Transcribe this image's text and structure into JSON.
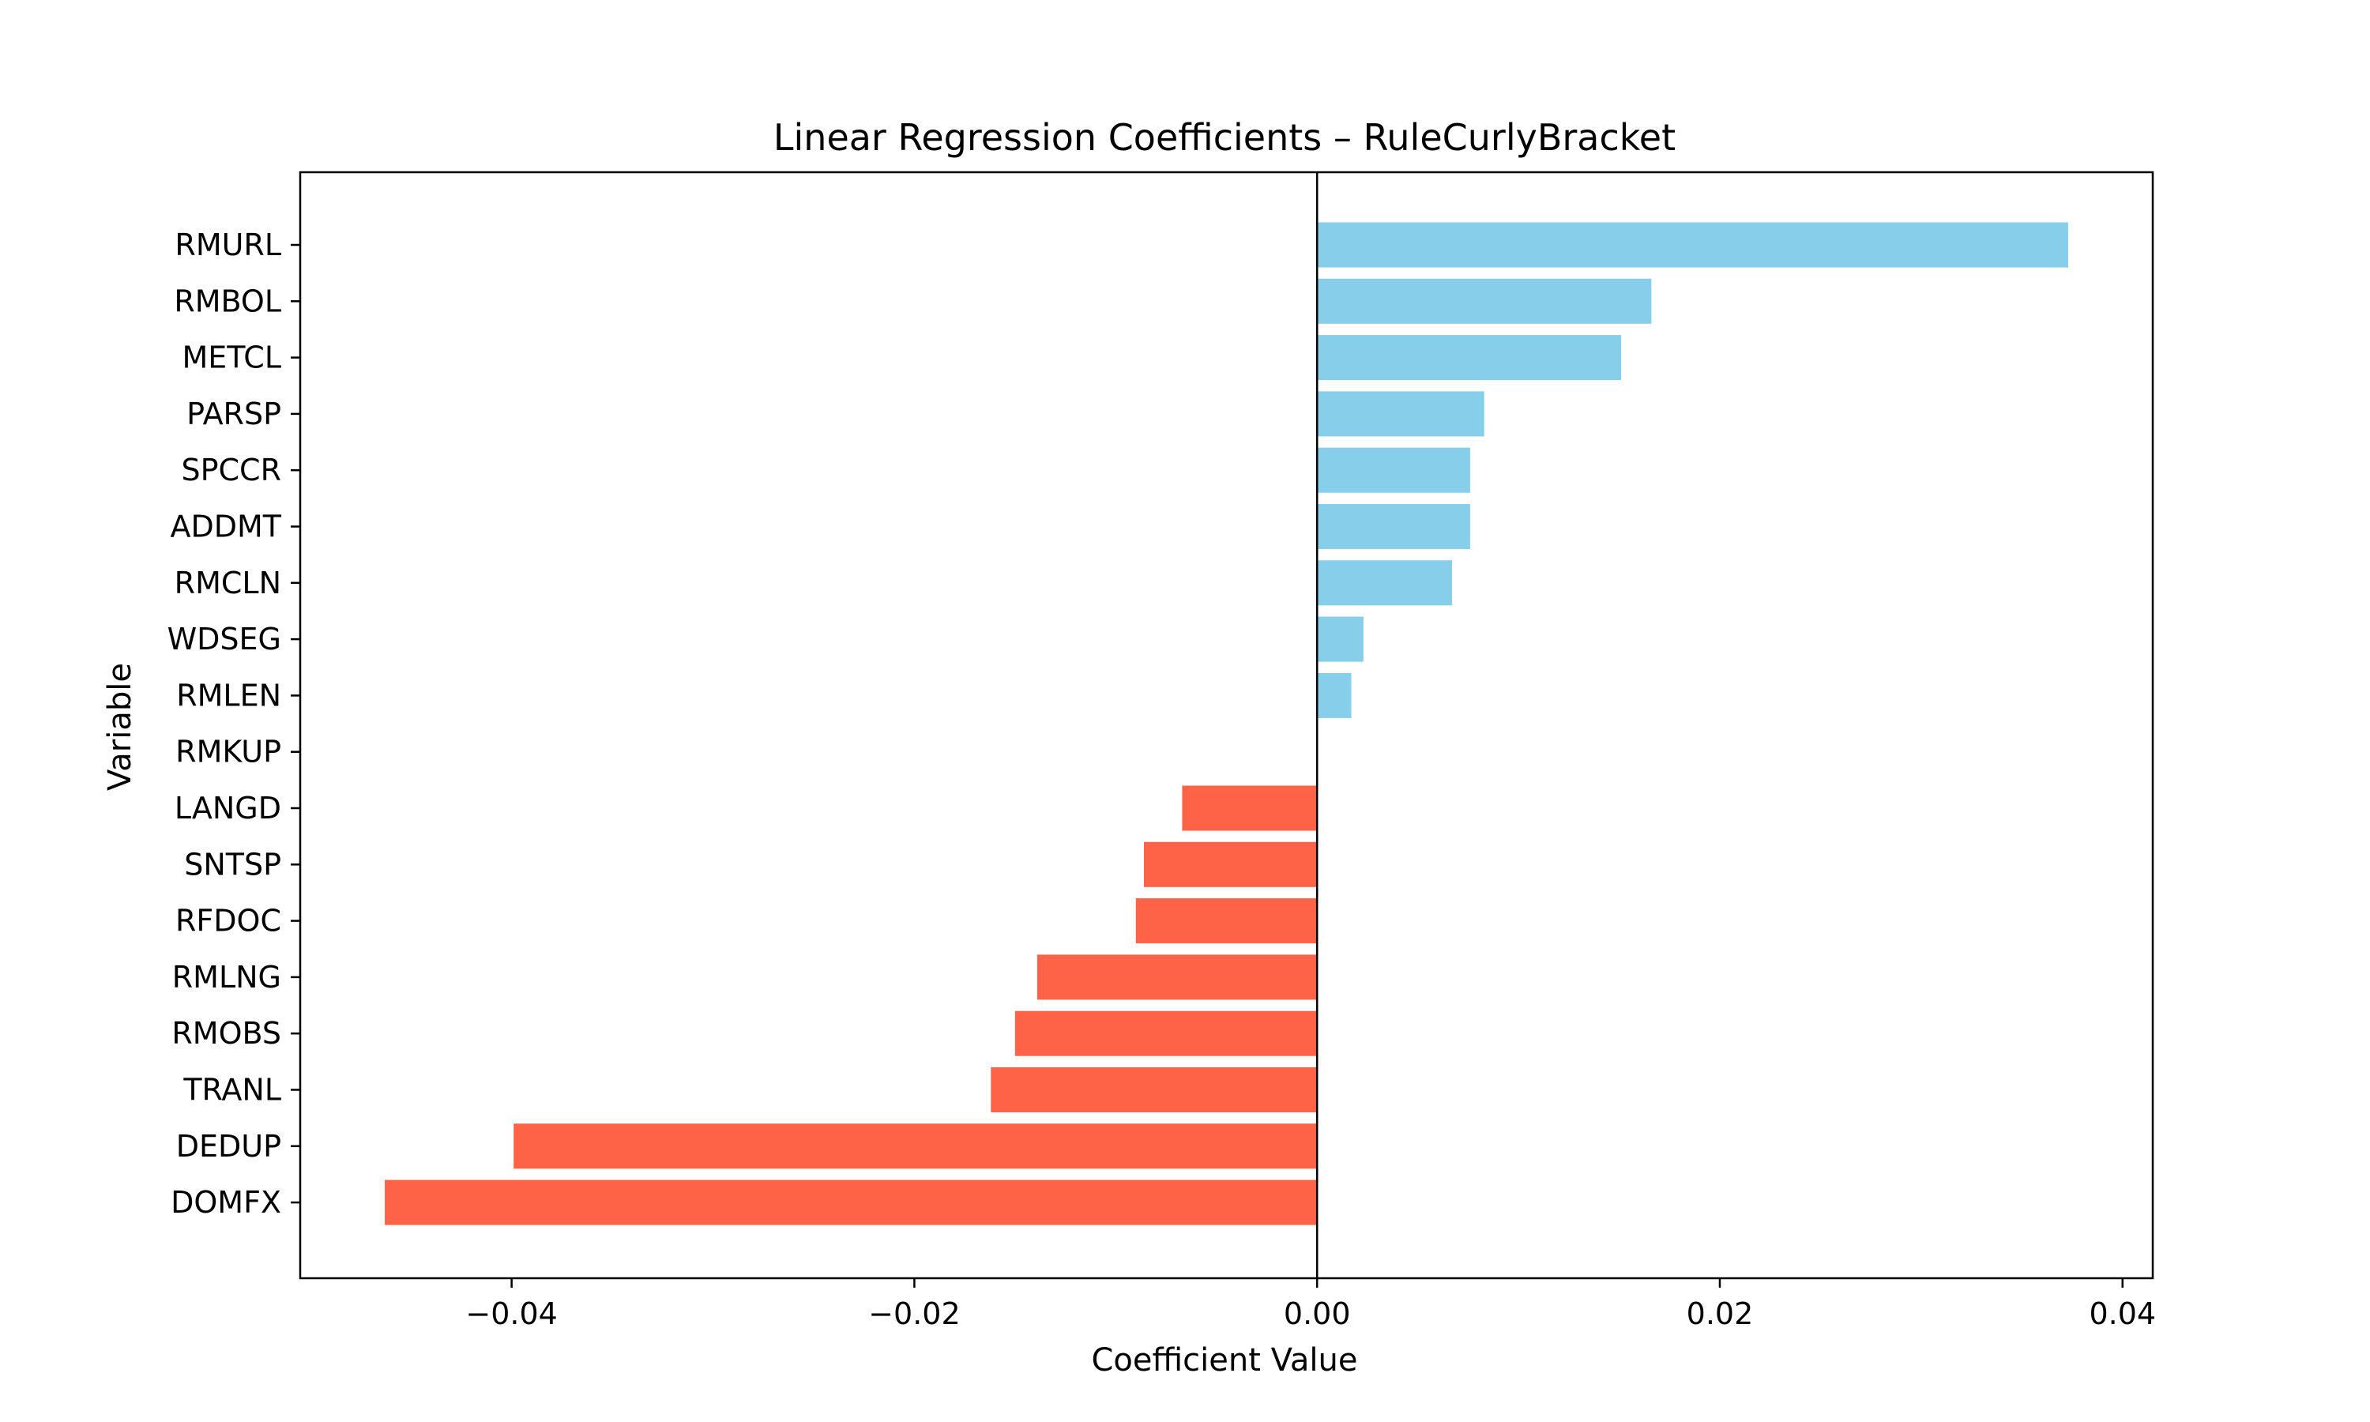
{
  "chart_data": {
    "type": "bar",
    "orientation": "horizontal",
    "title": "Linear Regression Coefficients – RuleCurlyBracket",
    "xlabel": "Coefficient Value",
    "ylabel": "Variable",
    "xlim": [
      -0.0505,
      0.0415
    ],
    "xticks": [
      -0.04,
      -0.02,
      0.0,
      0.02,
      0.04
    ],
    "xtick_labels": [
      "−0.04",
      "−0.02",
      "0.00",
      "0.02",
      "0.04"
    ],
    "grid": false,
    "colors": {
      "positive": "#87CEEB",
      "negative": "#FF6347"
    },
    "categories": [
      "RMURL",
      "RMBOL",
      "METCL",
      "PARSP",
      "SPCCR",
      "ADDMT",
      "RMCLN",
      "WDSEG",
      "RMLEN",
      "RMKUP",
      "LANGD",
      "SNTSP",
      "RFDOC",
      "RMLNG",
      "RMOBS",
      "TRANL",
      "DEDUP",
      "DOMFX"
    ],
    "values": [
      0.0373,
      0.0166,
      0.0151,
      0.0083,
      0.0076,
      0.0076,
      0.0067,
      0.0023,
      0.0017,
      0.0,
      -0.0067,
      -0.0086,
      -0.009,
      -0.0139,
      -0.015,
      -0.0162,
      -0.0399,
      -0.0463
    ]
  }
}
